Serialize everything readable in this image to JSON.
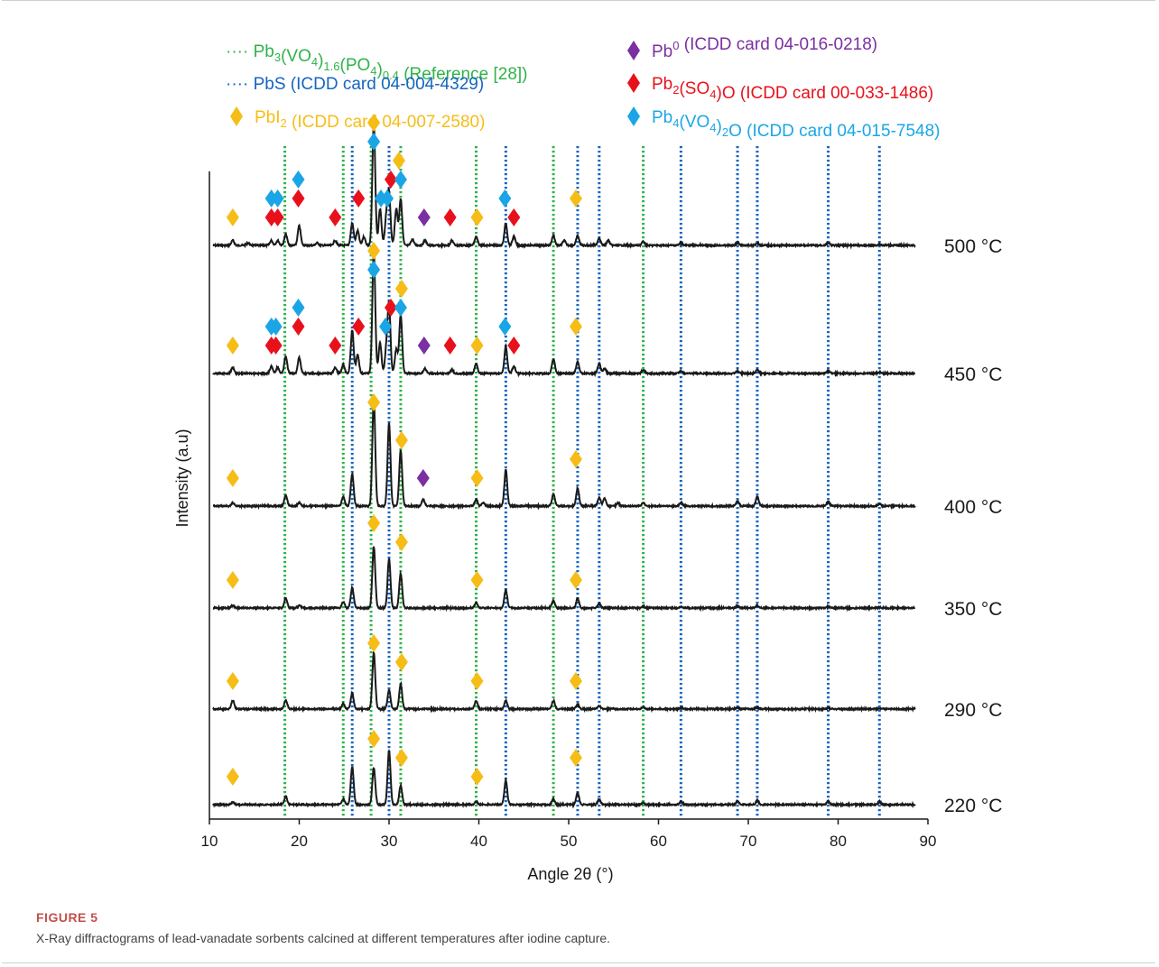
{
  "figure": {
    "label": "FIGURE 5",
    "caption": "X-Ray diffractograms of lead-vanadate sorbents calcined at different temperatures after iodine capture."
  },
  "colors": {
    "green": "#2fb34a",
    "dark_blue": "#1565c0",
    "gold": "#f6bd16",
    "purple": "#7b2fa1",
    "red": "#e8111b",
    "light_blue": "#1aa6e6",
    "trace": "#1a1a1a"
  },
  "legend": [
    {
      "id": "green",
      "symbol": "dotted-line",
      "color": "#2fb34a",
      "pre": "···· ",
      "parts": [
        [
          "Pb",
          ""
        ],
        [
          "3",
          "sub"
        ],
        [
          "(VO",
          ""
        ],
        [
          "4",
          "sub"
        ],
        [
          ")",
          ""
        ],
        [
          "1.6",
          "sub"
        ],
        [
          "(PO",
          ""
        ],
        [
          "4",
          "sub"
        ],
        [
          ")",
          ""
        ],
        [
          "0.4",
          "sub"
        ],
        [
          " (Reference [28])",
          ""
        ]
      ]
    },
    {
      "id": "dark_blue",
      "symbol": "dotted-line",
      "color": "#1565c0",
      "pre": "····  ",
      "parts": [
        [
          "PbS (ICDD card 04-004-4329)",
          ""
        ]
      ]
    },
    {
      "id": "gold",
      "symbol": "diamond",
      "color": "#f6bd16",
      "pre": "",
      "parts": [
        [
          "PbI",
          ""
        ],
        [
          "2",
          "sub"
        ],
        [
          " (ICDD card 04-007-2580)",
          ""
        ]
      ]
    },
    {
      "id": "purple",
      "symbol": "diamond",
      "color": "#7b2fa1",
      "pre": "",
      "parts": [
        [
          "Pb",
          ""
        ],
        [
          "0",
          "sup"
        ],
        [
          " (ICDD card 04-016-0218)",
          ""
        ]
      ]
    },
    {
      "id": "red",
      "symbol": "diamond",
      "color": "#e8111b",
      "pre": "",
      "parts": [
        [
          "Pb",
          ""
        ],
        [
          "2",
          "sub"
        ],
        [
          "(SO",
          ""
        ],
        [
          "4",
          "sub"
        ],
        [
          ")O (ICDD card 00-033-1486)",
          ""
        ]
      ]
    },
    {
      "id": "light_blue",
      "symbol": "diamond",
      "color": "#1aa6e6",
      "pre": "",
      "parts": [
        [
          "Pb",
          ""
        ],
        [
          "4",
          "sub"
        ],
        [
          "(VO",
          ""
        ],
        [
          "4",
          "sub"
        ],
        [
          ")",
          ""
        ],
        [
          "2",
          "sub"
        ],
        [
          "O (ICDD card 04-015-7548)",
          ""
        ]
      ]
    }
  ],
  "chart_data": {
    "type": "line",
    "xlabel": "Angle 2θ (°)",
    "ylabel": "Intensity (a.u)",
    "xlim": [
      10,
      90
    ],
    "xticks": [
      10,
      20,
      30,
      40,
      50,
      60,
      70,
      80,
      90
    ],
    "grid": false,
    "reference_lines": {
      "Pb3(VO4)1.6(PO4)0.4": [
        18.4,
        24.9,
        28.0,
        31.3,
        39.7,
        48.3,
        58.3
      ],
      "PbS": [
        25.9,
        30.0,
        43.0,
        51.0,
        53.4,
        62.5,
        68.8,
        71.0,
        78.9,
        84.6
      ]
    },
    "series": [
      {
        "name": "500 °C",
        "peaks": [
          [
            12.6,
            4
          ],
          [
            14.3,
            2
          ],
          [
            16.9,
            4
          ],
          [
            17.6,
            4
          ],
          [
            18.5,
            9
          ],
          [
            20.0,
            16
          ],
          [
            22.0,
            2
          ],
          [
            24.0,
            4
          ],
          [
            25.9,
            18
          ],
          [
            26.5,
            12
          ],
          [
            27.2,
            7
          ],
          [
            28.3,
            100
          ],
          [
            29.0,
            30
          ],
          [
            29.7,
            22
          ],
          [
            30.0,
            42
          ],
          [
            30.8,
            30
          ],
          [
            31.3,
            38
          ],
          [
            32.6,
            5
          ],
          [
            34.0,
            4
          ],
          [
            37.0,
            4
          ],
          [
            39.7,
            7
          ],
          [
            43.0,
            18
          ],
          [
            43.9,
            7
          ],
          [
            48.3,
            8
          ],
          [
            49.5,
            4
          ],
          [
            51.0,
            8
          ],
          [
            53.4,
            6
          ],
          [
            54.4,
            4
          ],
          [
            58.3,
            3
          ],
          [
            62.5,
            2
          ],
          [
            68.8,
            2
          ],
          [
            71.0,
            2
          ],
          [
            78.9,
            2
          ],
          [
            84.6,
            1
          ]
        ]
      },
      {
        "name": "450 °C",
        "peaks": [
          [
            12.6,
            5
          ],
          [
            16.9,
            6
          ],
          [
            17.6,
            5
          ],
          [
            18.5,
            14
          ],
          [
            20.0,
            13
          ],
          [
            24.0,
            5
          ],
          [
            24.9,
            7
          ],
          [
            25.9,
            35
          ],
          [
            26.5,
            15
          ],
          [
            28.3,
            100
          ],
          [
            29.0,
            25
          ],
          [
            29.7,
            18
          ],
          [
            30.0,
            55
          ],
          [
            30.8,
            20
          ],
          [
            31.3,
            48
          ],
          [
            34.0,
            4
          ],
          [
            37.0,
            3
          ],
          [
            39.7,
            8
          ],
          [
            43.0,
            22
          ],
          [
            43.9,
            6
          ],
          [
            48.3,
            12
          ],
          [
            51.0,
            10
          ],
          [
            53.4,
            8
          ],
          [
            54.0,
            4
          ],
          [
            58.3,
            3
          ],
          [
            62.5,
            2
          ],
          [
            68.8,
            2
          ],
          [
            71.0,
            3
          ],
          [
            78.9,
            2
          ],
          [
            84.6,
            1
          ]
        ]
      },
      {
        "name": "400 °C",
        "peaks": [
          [
            12.6,
            3
          ],
          [
            18.5,
            10
          ],
          [
            20.0,
            3
          ],
          [
            24.9,
            9
          ],
          [
            25.9,
            30
          ],
          [
            28.3,
            100
          ],
          [
            30.0,
            78
          ],
          [
            31.3,
            52
          ],
          [
            33.8,
            6
          ],
          [
            39.7,
            6
          ],
          [
            40.5,
            3
          ],
          [
            43.0,
            34
          ],
          [
            48.3,
            11
          ],
          [
            51.0,
            17
          ],
          [
            53.4,
            8
          ],
          [
            54.0,
            7
          ],
          [
            55.5,
            3
          ],
          [
            58.3,
            3
          ],
          [
            62.5,
            3
          ],
          [
            68.8,
            5
          ],
          [
            71.0,
            9
          ],
          [
            78.9,
            4
          ],
          [
            84.6,
            2
          ]
        ]
      },
      {
        "name": "350 °C",
        "peaks": [
          [
            12.6,
            4
          ],
          [
            18.5,
            16
          ],
          [
            20.0,
            4
          ],
          [
            24.9,
            10
          ],
          [
            25.9,
            33
          ],
          [
            28.3,
            100
          ],
          [
            30.0,
            80
          ],
          [
            31.3,
            56
          ],
          [
            39.7,
            8
          ],
          [
            43.0,
            30
          ],
          [
            48.3,
            12
          ],
          [
            51.0,
            16
          ],
          [
            53.4,
            7
          ],
          [
            58.3,
            3
          ],
          [
            62.5,
            2
          ],
          [
            68.8,
            3
          ],
          [
            71.0,
            4
          ],
          [
            78.9,
            2
          ],
          [
            84.6,
            1
          ]
        ]
      },
      {
        "name": "290 °C",
        "peaks": [
          [
            12.6,
            15
          ],
          [
            18.5,
            16
          ],
          [
            24.9,
            10
          ],
          [
            25.9,
            28
          ],
          [
            28.3,
            100
          ],
          [
            30.0,
            34
          ],
          [
            31.3,
            45
          ],
          [
            39.7,
            15
          ],
          [
            43.0,
            15
          ],
          [
            48.3,
            15
          ],
          [
            51.0,
            8
          ],
          [
            53.4,
            6
          ],
          [
            58.3,
            3
          ],
          [
            62.5,
            2
          ],
          [
            68.8,
            2
          ],
          [
            71.0,
            3
          ],
          [
            78.9,
            2
          ],
          [
            84.6,
            1
          ]
        ]
      },
      {
        "name": "220 °C",
        "peaks": [
          [
            12.6,
            5
          ],
          [
            18.5,
            15
          ],
          [
            24.9,
            10
          ],
          [
            25.9,
            70
          ],
          [
            28.3,
            68
          ],
          [
            30.0,
            100
          ],
          [
            31.3,
            35
          ],
          [
            39.7,
            5
          ],
          [
            43.0,
            45
          ],
          [
            48.3,
            10
          ],
          [
            51.0,
            22
          ],
          [
            53.4,
            10
          ],
          [
            58.3,
            3
          ],
          [
            62.5,
            5
          ],
          [
            68.8,
            6
          ],
          [
            71.0,
            8
          ],
          [
            78.9,
            6
          ],
          [
            84.6,
            5
          ]
        ]
      }
    ],
    "markers": {
      "500 °C": [
        {
          "x": 12.6,
          "phase": "gold",
          "level": 1
        },
        {
          "x": 16.9,
          "phase": "red",
          "level": 1
        },
        {
          "x": 17.6,
          "phase": "red",
          "level": 1
        },
        {
          "x": 16.9,
          "phase": "light_blue",
          "level": 2
        },
        {
          "x": 17.6,
          "phase": "light_blue",
          "level": 2
        },
        {
          "x": 19.9,
          "phase": "red",
          "level": 2
        },
        {
          "x": 19.9,
          "phase": "light_blue",
          "level": 3
        },
        {
          "x": 24.0,
          "phase": "red",
          "level": 1
        },
        {
          "x": 26.6,
          "phase": "red",
          "level": 2
        },
        {
          "x": 28.3,
          "phase": "light_blue",
          "level": 5
        },
        {
          "x": 28.3,
          "phase": "gold",
          "level": 6
        },
        {
          "x": 29.1,
          "phase": "light_blue",
          "level": 2
        },
        {
          "x": 29.8,
          "phase": "light_blue",
          "level": 2
        },
        {
          "x": 30.2,
          "phase": "red",
          "level": 3
        },
        {
          "x": 31.1,
          "phase": "gold",
          "level": 4
        },
        {
          "x": 31.3,
          "phase": "light_blue",
          "level": 3
        },
        {
          "x": 33.9,
          "phase": "purple",
          "level": 1
        },
        {
          "x": 36.8,
          "phase": "red",
          "level": 1
        },
        {
          "x": 39.8,
          "phase": "gold",
          "level": 1
        },
        {
          "x": 42.9,
          "phase": "light_blue",
          "level": 2
        },
        {
          "x": 43.9,
          "phase": "red",
          "level": 1
        },
        {
          "x": 50.8,
          "phase": "gold",
          "level": 2
        }
      ],
      "450 °C": [
        {
          "x": 12.6,
          "phase": "gold",
          "level": 1
        },
        {
          "x": 16.9,
          "phase": "red",
          "level": 1
        },
        {
          "x": 17.4,
          "phase": "red",
          "level": 1
        },
        {
          "x": 16.9,
          "phase": "light_blue",
          "level": 2
        },
        {
          "x": 17.4,
          "phase": "light_blue",
          "level": 2
        },
        {
          "x": 19.9,
          "phase": "red",
          "level": 2
        },
        {
          "x": 19.9,
          "phase": "light_blue",
          "level": 3
        },
        {
          "x": 24.0,
          "phase": "red",
          "level": 1
        },
        {
          "x": 26.6,
          "phase": "red",
          "level": 2
        },
        {
          "x": 28.3,
          "phase": "light_blue",
          "level": 5
        },
        {
          "x": 28.3,
          "phase": "gold",
          "level": 6
        },
        {
          "x": 29.6,
          "phase": "light_blue",
          "level": 2
        },
        {
          "x": 30.2,
          "phase": "red",
          "level": 3
        },
        {
          "x": 31.3,
          "phase": "light_blue",
          "level": 3
        },
        {
          "x": 31.4,
          "phase": "gold",
          "level": 4
        },
        {
          "x": 33.9,
          "phase": "purple",
          "level": 1
        },
        {
          "x": 36.8,
          "phase": "red",
          "level": 1
        },
        {
          "x": 39.8,
          "phase": "gold",
          "level": 1
        },
        {
          "x": 42.9,
          "phase": "light_blue",
          "level": 2
        },
        {
          "x": 43.9,
          "phase": "red",
          "level": 1
        },
        {
          "x": 50.8,
          "phase": "gold",
          "level": 2
        }
      ],
      "400 °C": [
        {
          "x": 12.6,
          "phase": "gold",
          "level": 1
        },
        {
          "x": 28.3,
          "phase": "gold",
          "level": 5
        },
        {
          "x": 31.4,
          "phase": "gold",
          "level": 3
        },
        {
          "x": 33.8,
          "phase": "purple",
          "level": 1
        },
        {
          "x": 39.8,
          "phase": "gold",
          "level": 1
        },
        {
          "x": 50.8,
          "phase": "gold",
          "level": 2
        }
      ],
      "350 °C": [
        {
          "x": 12.6,
          "phase": "gold",
          "level": 1
        },
        {
          "x": 28.3,
          "phase": "gold",
          "level": 4
        },
        {
          "x": 31.4,
          "phase": "gold",
          "level": 3
        },
        {
          "x": 39.8,
          "phase": "gold",
          "level": 1
        },
        {
          "x": 50.8,
          "phase": "gold",
          "level": 1
        }
      ],
      "290 °C": [
        {
          "x": 12.6,
          "phase": "gold",
          "level": 1
        },
        {
          "x": 28.3,
          "phase": "gold",
          "level": 3
        },
        {
          "x": 31.4,
          "phase": "gold",
          "level": 2
        },
        {
          "x": 39.8,
          "phase": "gold",
          "level": 1
        },
        {
          "x": 50.8,
          "phase": "gold",
          "level": 1
        }
      ],
      "220 °C": [
        {
          "x": 12.6,
          "phase": "gold",
          "level": 1
        },
        {
          "x": 28.3,
          "phase": "gold",
          "level": 3
        },
        {
          "x": 31.4,
          "phase": "gold",
          "level": 2
        },
        {
          "x": 39.8,
          "phase": "gold",
          "level": 1
        },
        {
          "x": 50.8,
          "phase": "gold",
          "level": 2
        }
      ]
    }
  }
}
